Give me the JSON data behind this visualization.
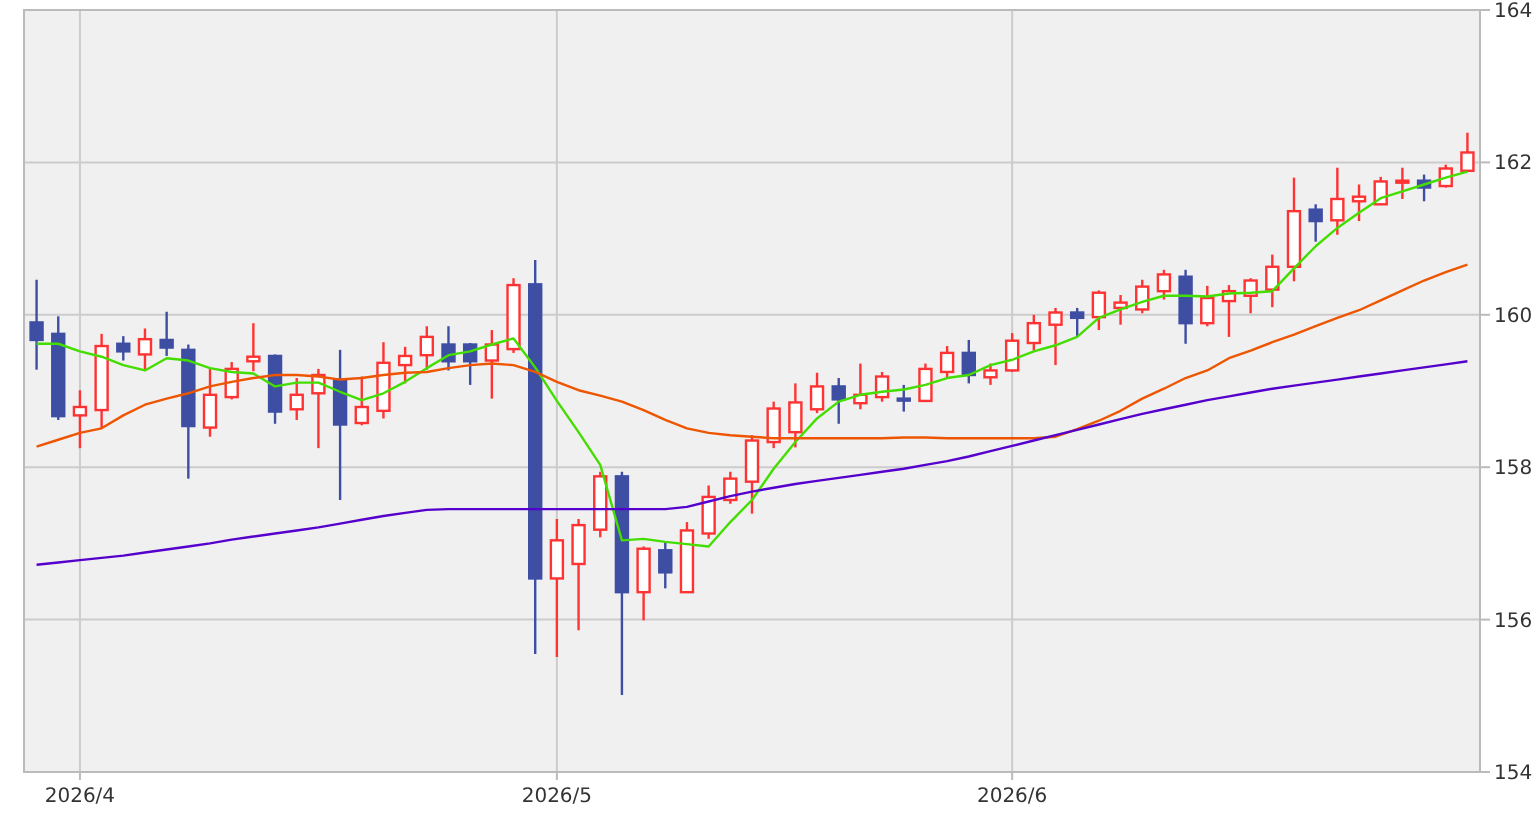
{
  "chart_data": {
    "type": "candlestick",
    "categories": [
      null,
      null,
      "2026/4",
      null,
      null,
      null,
      null,
      null,
      null,
      null,
      null,
      null,
      null,
      null,
      null,
      null,
      null,
      null,
      null,
      null,
      null,
      null,
      null,
      null,
      "2026/5",
      null,
      null,
      null,
      null,
      null,
      null,
      null,
      null,
      null,
      null,
      null,
      null,
      null,
      null,
      null,
      null,
      null,
      null,
      null,
      null,
      "2026/6",
      null,
      null,
      null,
      null,
      null,
      null,
      null,
      null,
      null,
      null,
      null,
      null,
      null,
      null,
      null,
      null,
      null,
      null,
      null,
      null,
      null
    ],
    "ohlc": [
      [
        159.9,
        160.46,
        159.28,
        159.67
      ],
      [
        159.75,
        159.98,
        158.62,
        158.67
      ],
      [
        158.68,
        159.01,
        158.25,
        158.79
      ],
      [
        158.75,
        159.75,
        158.51,
        159.59
      ],
      [
        159.62,
        159.72,
        159.4,
        159.52
      ],
      [
        159.48,
        159.82,
        159.28,
        159.68
      ],
      [
        159.67,
        160.04,
        159.46,
        159.57
      ],
      [
        159.54,
        159.61,
        157.85,
        158.54
      ],
      [
        158.52,
        159.29,
        158.4,
        158.95
      ],
      [
        158.92,
        159.38,
        158.89,
        159.29
      ],
      [
        159.39,
        159.89,
        159.26,
        159.45
      ],
      [
        159.46,
        159.48,
        158.57,
        158.73
      ],
      [
        158.76,
        159.17,
        158.62,
        158.95
      ],
      [
        158.97,
        159.29,
        158.25,
        159.21
      ],
      [
        159.15,
        159.54,
        157.57,
        158.56
      ],
      [
        158.58,
        159.19,
        158.55,
        158.79
      ],
      [
        158.74,
        159.64,
        158.64,
        159.37
      ],
      [
        159.34,
        159.58,
        159.1,
        159.46
      ],
      [
        159.47,
        159.85,
        159.28,
        159.71
      ],
      [
        159.61,
        159.85,
        159.27,
        159.39
      ],
      [
        159.61,
        159.63,
        159.08,
        159.39
      ],
      [
        159.4,
        159.8,
        158.9,
        159.61
      ],
      [
        159.55,
        160.48,
        159.5,
        160.39
      ],
      [
        160.4,
        160.72,
        155.55,
        156.54
      ],
      [
        156.54,
        157.32,
        155.51,
        157.04
      ],
      [
        156.73,
        157.32,
        155.86,
        157.24
      ],
      [
        157.18,
        157.94,
        157.08,
        157.88
      ],
      [
        157.88,
        157.94,
        155.01,
        156.36
      ],
      [
        156.36,
        156.96,
        155.99,
        156.93
      ],
      [
        156.91,
        157.02,
        156.41,
        156.62
      ],
      [
        156.36,
        157.28,
        156.36,
        157.17
      ],
      [
        157.13,
        157.76,
        157.06,
        157.61
      ],
      [
        157.57,
        157.94,
        157.52,
        157.85
      ],
      [
        157.81,
        158.42,
        157.39,
        158.35
      ],
      [
        158.33,
        158.86,
        158.25,
        158.77
      ],
      [
        158.46,
        159.1,
        158.26,
        158.85
      ],
      [
        158.76,
        159.24,
        158.71,
        159.06
      ],
      [
        159.06,
        159.17,
        158.57,
        158.89
      ],
      [
        158.84,
        159.36,
        158.76,
        158.95
      ],
      [
        158.92,
        159.25,
        158.86,
        159.19
      ],
      [
        158.9,
        159.08,
        158.73,
        158.89
      ],
      [
        158.87,
        159.36,
        158.86,
        159.29
      ],
      [
        159.25,
        159.59,
        159.17,
        159.5
      ],
      [
        159.5,
        159.67,
        159.1,
        159.21
      ],
      [
        159.18,
        159.36,
        159.08,
        159.27
      ],
      [
        159.27,
        159.76,
        159.25,
        159.66
      ],
      [
        159.63,
        160.0,
        159.53,
        159.89
      ],
      [
        159.87,
        160.09,
        159.34,
        160.03
      ],
      [
        160.03,
        160.09,
        159.71,
        159.96
      ],
      [
        159.97,
        160.32,
        159.8,
        160.29
      ],
      [
        160.09,
        160.26,
        159.87,
        160.16
      ],
      [
        160.07,
        160.46,
        160.02,
        160.37
      ],
      [
        160.31,
        160.59,
        160.2,
        160.53
      ],
      [
        160.5,
        160.59,
        159.62,
        159.89
      ],
      [
        159.89,
        160.38,
        159.85,
        160.22
      ],
      [
        160.18,
        160.39,
        159.71,
        160.31
      ],
      [
        160.25,
        160.48,
        160.02,
        160.45
      ],
      [
        160.33,
        160.79,
        160.1,
        160.63
      ],
      [
        160.63,
        161.8,
        160.44,
        161.36
      ],
      [
        161.38,
        161.45,
        160.96,
        161.23
      ],
      [
        161.24,
        161.93,
        161.05,
        161.52
      ],
      [
        161.49,
        161.71,
        161.23,
        161.55
      ],
      [
        161.45,
        161.81,
        161.45,
        161.75
      ],
      [
        161.74,
        161.93,
        161.52,
        161.76
      ],
      [
        161.76,
        161.84,
        161.49,
        161.67
      ],
      [
        161.69,
        161.97,
        161.67,
        161.92
      ],
      [
        161.89,
        162.39,
        161.88,
        162.13
      ]
    ],
    "colors": [
      "#3d4ea3",
      "#3d4ea3",
      "#ff3333",
      "#ff3333",
      "#3d4ea3",
      "#ff3333",
      "#3d4ea3",
      "#3d4ea3",
      "#ff3333",
      "#ff3333",
      "#ff3333",
      "#3d4ea3",
      "#ff3333",
      "#ff3333",
      "#3d4ea3",
      "#ff3333",
      "#ff3333",
      "#ff3333",
      "#ff3333",
      "#3d4ea3",
      "#3d4ea3",
      "#ff3333",
      "#ff3333",
      "#3d4ea3",
      "#ff3333",
      "#ff3333",
      "#ff3333",
      "#3d4ea3",
      "#ff3333",
      "#3d4ea3",
      "#ff3333",
      "#ff3333",
      "#ff3333",
      "#ff3333",
      "#ff3333",
      "#ff3333",
      "#ff3333",
      "#3d4ea3",
      "#ff3333",
      "#ff3333",
      "#3d4ea3",
      "#ff3333",
      "#ff3333",
      "#3d4ea3",
      "#ff3333",
      "#ff3333",
      "#ff3333",
      "#ff3333",
      "#3d4ea3",
      "#ff3333",
      "#ff3333",
      "#ff3333",
      "#ff3333",
      "#3d4ea3",
      "#ff3333",
      "#ff3333",
      "#ff3333",
      "#ff3333",
      "#ff3333",
      "#3d4ea3",
      "#ff3333",
      "#ff3333",
      "#ff3333",
      "#ff3333",
      "#3d4ea3",
      "#ff3333",
      "#ff3333"
    ],
    "series": [
      {
        "type": "line",
        "color": "#44dd00",
        "values": [
          159.62,
          159.62,
          159.52,
          159.45,
          159.34,
          159.27,
          159.43,
          159.4,
          159.3,
          159.25,
          159.23,
          159.06,
          159.11,
          159.11,
          158.99,
          158.88,
          158.97,
          159.12,
          159.3,
          159.47,
          159.52,
          159.61,
          159.69,
          159.31,
          158.87,
          158.46,
          158.03,
          157.04,
          157.06,
          157.02,
          156.99,
          156.96,
          157.28,
          157.57,
          157.98,
          158.33,
          158.64,
          158.86,
          158.95,
          158.99,
          159.02,
          159.08,
          159.17,
          159.21,
          159.34,
          159.41,
          159.52,
          159.6,
          159.71,
          159.96,
          160.07,
          160.17,
          160.25,
          160.25,
          160.24,
          160.28,
          160.29,
          160.31,
          160.61,
          160.9,
          161.14,
          161.34,
          161.53,
          161.62,
          161.71,
          161.8,
          161.88
        ]
      },
      {
        "type": "line",
        "color": "#ee5500",
        "values": [
          158.27,
          158.36,
          158.45,
          158.51,
          158.68,
          158.82,
          158.9,
          158.97,
          159.06,
          159.12,
          159.17,
          159.21,
          159.21,
          159.19,
          159.15,
          159.17,
          159.21,
          159.24,
          159.25,
          159.3,
          159.34,
          159.36,
          159.34,
          159.25,
          159.12,
          159.01,
          158.94,
          158.86,
          158.75,
          158.62,
          158.51,
          158.45,
          158.42,
          158.4,
          158.38,
          158.38,
          158.38,
          158.38,
          158.38,
          158.38,
          158.39,
          158.39,
          158.38,
          158.38,
          158.38,
          158.38,
          158.38,
          158.4,
          158.5,
          158.61,
          158.74,
          158.9,
          159.03,
          159.17,
          159.27,
          159.43,
          159.53,
          159.64,
          159.74,
          159.85,
          159.96,
          160.06,
          160.19,
          160.32,
          160.45,
          160.56,
          160.66
        ]
      },
      {
        "type": "line",
        "color": "#5500cc",
        "values": [
          156.72,
          156.75,
          156.78,
          156.81,
          156.84,
          156.88,
          156.92,
          156.96,
          157.0,
          157.05,
          157.09,
          157.13,
          157.17,
          157.21,
          157.26,
          157.31,
          157.36,
          157.4,
          157.44,
          157.45,
          157.45,
          157.45,
          157.45,
          157.45,
          157.45,
          157.45,
          157.45,
          157.45,
          157.45,
          157.45,
          157.48,
          157.55,
          157.62,
          157.68,
          157.73,
          157.78,
          157.82,
          157.86,
          157.9,
          157.94,
          157.98,
          158.03,
          158.08,
          158.14,
          158.21,
          158.28,
          158.35,
          158.42,
          158.49,
          158.56,
          158.63,
          158.7,
          158.76,
          158.82,
          158.88,
          158.93,
          158.98,
          159.03,
          159.07,
          159.11,
          159.15,
          159.19,
          159.23,
          159.27,
          159.31,
          159.35,
          159.39
        ]
      }
    ],
    "ylim": [
      154,
      164
    ],
    "yticks": [
      154,
      156,
      158,
      160,
      162,
      164
    ],
    "grid": true
  }
}
